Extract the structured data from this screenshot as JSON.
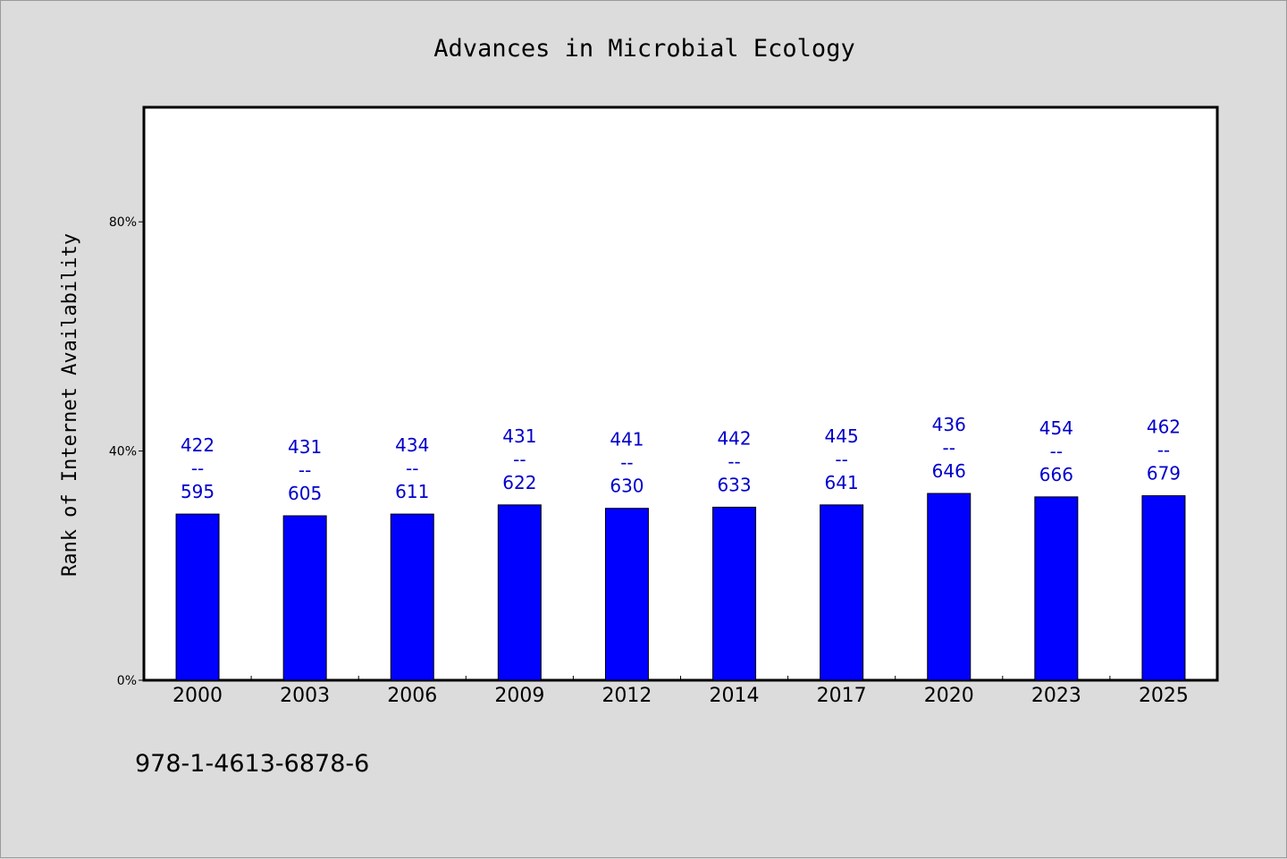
{
  "chart_data": {
    "type": "bar",
    "title": "Advances in Microbial Ecology",
    "xlabel": "",
    "ylabel": "Rank of Internet Availability",
    "categories": [
      "2000",
      "2003",
      "2006",
      "2009",
      "2012",
      "2014",
      "2017",
      "2020",
      "2023",
      "2025"
    ],
    "values": [
      29,
      28.7,
      29,
      30.6,
      30,
      30.2,
      30.6,
      32.6,
      32,
      32.2
    ],
    "bar_labels": [
      {
        "top": "422",
        "sep": "--",
        "bottom": "595"
      },
      {
        "top": "431",
        "sep": "--",
        "bottom": "605"
      },
      {
        "top": "434",
        "sep": "--",
        "bottom": "611"
      },
      {
        "top": "431",
        "sep": "--",
        "bottom": "622"
      },
      {
        "top": "441",
        "sep": "--",
        "bottom": "630"
      },
      {
        "top": "442",
        "sep": "--",
        "bottom": "633"
      },
      {
        "top": "445",
        "sep": "--",
        "bottom": "641"
      },
      {
        "top": "436",
        "sep": "--",
        "bottom": "646"
      },
      {
        "top": "454",
        "sep": "--",
        "bottom": "666"
      },
      {
        "top": "462",
        "sep": "--",
        "bottom": "679"
      }
    ],
    "ylim": [
      0,
      100
    ],
    "yticks": [
      0,
      40,
      80
    ],
    "ytick_labels": [
      "0%",
      "40%",
      "80%"
    ],
    "grid": false,
    "legend": "none",
    "colors": {
      "bar": "#0000ff",
      "label": "#0000cc",
      "plot_bg": "#ffffff",
      "page_bg": "#dcdcdc"
    }
  },
  "footer": {
    "isbn": "978-1-4613-6878-6"
  }
}
